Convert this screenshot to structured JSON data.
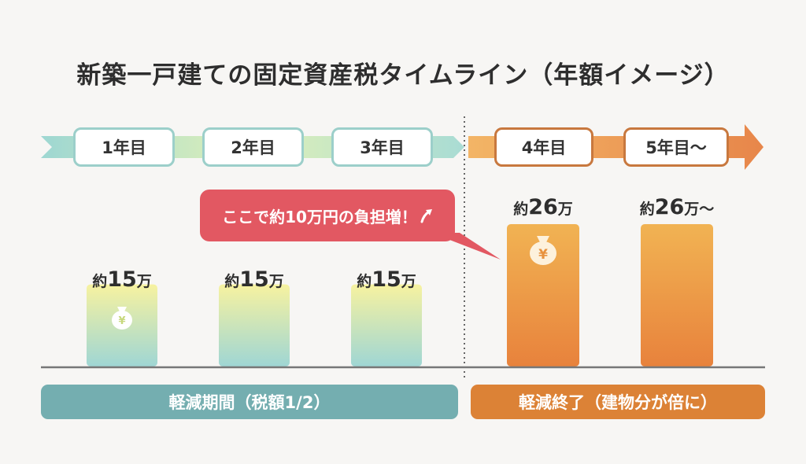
{
  "title": "新築一戸建ての固定資産税タイムライン（年額イメージ）",
  "colors": {
    "teal_period": "#74aeb0",
    "orange_period": "#dc8236",
    "callout": "#e25862",
    "bar_teal_top": "#f7f2a0",
    "bar_teal_bottom": "#9fd6d4",
    "bar_orange_top": "#f1b353",
    "bar_orange_bottom": "#e8823c"
  },
  "callout": {
    "text": "ここで約10万円の負担増！",
    "icon": "arrow-up-icon"
  },
  "periods": [
    {
      "label": "軽減期間（税額1/2）"
    },
    {
      "label": "軽減終了（建物分が倍に）"
    }
  ],
  "chart_data": {
    "type": "bar",
    "title": "新築一戸建ての固定資産税タイムライン（年額イメージ）",
    "categories": [
      "1年目",
      "2年目",
      "3年目",
      "4年目",
      "5年目〜"
    ],
    "values": [
      15,
      15,
      15,
      26,
      26
    ],
    "value_labels": [
      {
        "prefix": "約",
        "number": "15",
        "unit": "万"
      },
      {
        "prefix": "約",
        "number": "15",
        "unit": "万"
      },
      {
        "prefix": "約",
        "number": "15",
        "unit": "万"
      },
      {
        "prefix": "約",
        "number": "26",
        "unit": "万"
      },
      {
        "prefix": "約",
        "number": "26",
        "unit": "万〜"
      }
    ],
    "ylim": [
      0,
      30
    ],
    "icons": [
      "money-bag-yen-icon",
      "money-bag-yen-icon"
    ],
    "grid": false
  }
}
